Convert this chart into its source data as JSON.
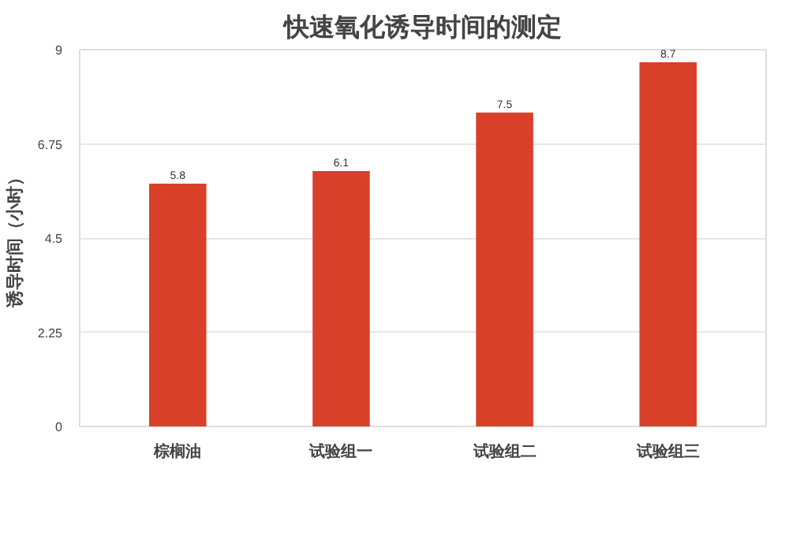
{
  "chart_data": {
    "type": "bar",
    "title": "快速氧化诱导时间的测定",
    "ylabel": "诱导时间（小时）",
    "categories": [
      "棕榈油",
      "试验组一",
      "试验组二",
      "试验组三"
    ],
    "values": [
      5.8,
      6.1,
      7.5,
      8.7
    ],
    "color": "#d9402a",
    "ylim": [
      0,
      9
    ],
    "yticks": [
      0,
      {
        "value": 2.25,
        "label": "2.25"
      },
      {
        "value": 4.5,
        "label": "4.5"
      },
      {
        "value": 6.75,
        "label": "6.75"
      },
      9
    ],
    "grid": "y",
    "data_labels": true
  }
}
